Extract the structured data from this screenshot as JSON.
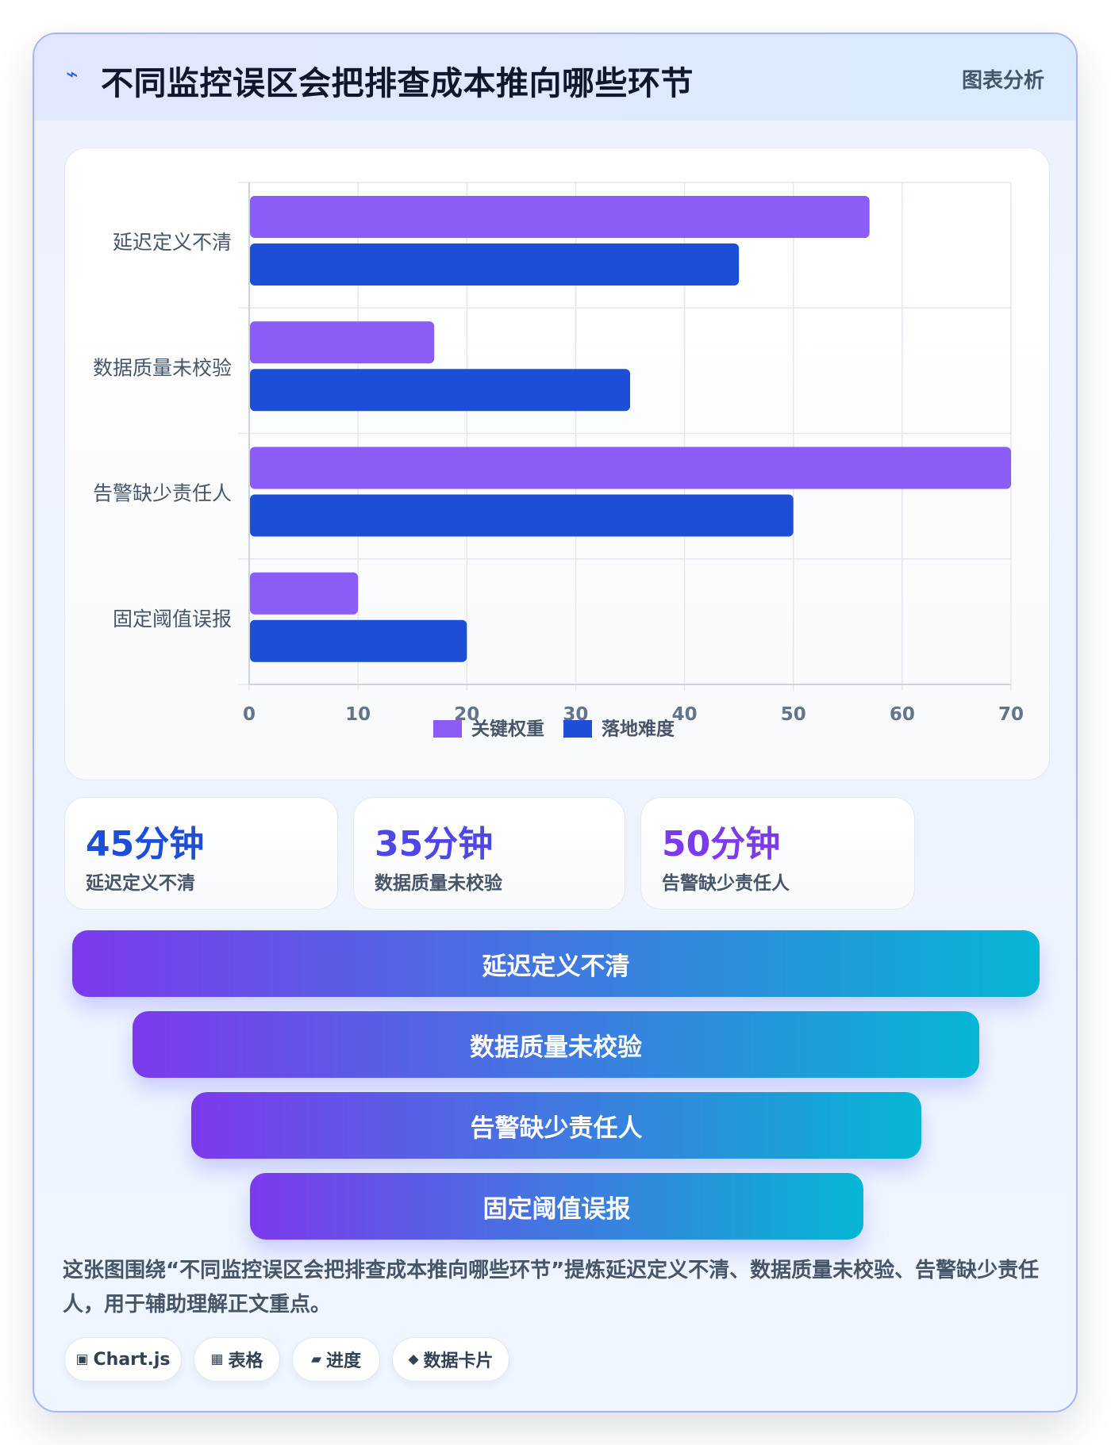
{
  "header": {
    "icon": "bolt-icon",
    "title": "不同监控误区会把排查成本推向哪些环节",
    "tag": "图表分析"
  },
  "chart_data": {
    "type": "bar",
    "orientation": "horizontal",
    "categories": [
      "延迟定义不清",
      "数据质量未校验",
      "告警缺少责任人",
      "固定阈值误报"
    ],
    "series": [
      {
        "name": "关键权重",
        "color": "#8b5cf6",
        "values": [
          57,
          17,
          70,
          10
        ]
      },
      {
        "name": "落地难度",
        "color": "#1d4ed8",
        "values": [
          45,
          35,
          50,
          20
        ]
      }
    ],
    "xlim": [
      0,
      70
    ],
    "xticks": [
      0,
      10,
      20,
      30,
      40,
      50,
      60,
      70
    ],
    "grid": true,
    "legend_position": "bottom"
  },
  "stats": [
    {
      "value": "45分钟",
      "label": "延迟定义不清",
      "color": "#1d4ed8"
    },
    {
      "value": "35分钟",
      "label": "数据质量未校验",
      "color": "#4f46e5"
    },
    {
      "value": "50分钟",
      "label": "告警缺少责任人",
      "color": "#7c3aed"
    }
  ],
  "funnel": [
    "延迟定义不清",
    "数据质量未校验",
    "告警缺少责任人",
    "固定阈值误报"
  ],
  "summary": "这张图围绕“不同监控误区会把排查成本推向哪些环节”提炼延迟定义不清、数据质量未校验、告警缺少责任人，用于辅助理解正文重点。",
  "chips": [
    {
      "icon": "▣",
      "label": "Chart.js"
    },
    {
      "icon": "▦",
      "label": "表格"
    },
    {
      "icon": "▰",
      "label": "进度"
    },
    {
      "icon": "◆",
      "label": "数据卡片"
    }
  ]
}
